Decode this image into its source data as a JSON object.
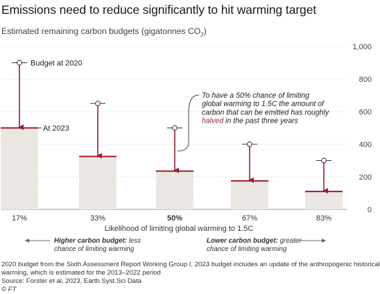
{
  "header": {
    "title": "Emissions need to reduce significantly to hit warming target",
    "subtitle_main": "Estimated remaining carbon budgets (gigatonnes CO",
    "subtitle_sub": "2",
    "subtitle_end": ")"
  },
  "chart_data": {
    "type": "bar",
    "title": "Emissions need to reduce significantly to hit warming target",
    "subtitle": "Estimated remaining carbon budgets (gigatonnes CO2)",
    "xlabel": "Likelihood of limiting global warming to 1.5C",
    "ylabel": "",
    "ylim": [
      0,
      1000
    ],
    "yticks": [
      "0",
      "200",
      "400",
      "600",
      "800",
      "1,000"
    ],
    "categories": [
      "17%",
      "33%",
      "50%",
      "67%",
      "83%"
    ],
    "highlight_category": "50%",
    "series": [
      {
        "name": "Budget at 2020",
        "values": [
          900,
          650,
          500,
          400,
          300
        ]
      },
      {
        "name": "At 2023",
        "values": [
          500,
          325,
          235,
          175,
          110
        ]
      }
    ],
    "legend_labels": {
      "budget_2020": "Budget at 2020",
      "at_2023": "At 2023"
    },
    "annotation": {
      "line1": "To have a 50% chance of limiting",
      "line2": "global warming to 1.5C the amount of",
      "line3": "carbon that can be emitted has roughly",
      "highlight": "halved",
      "line4_rest": " in the past three years"
    },
    "direction_left": {
      "bold": "Higher carbon budget:",
      "rest1": " less",
      "line2": "chance of limiting warming"
    },
    "direction_right": {
      "bold": "Lower carbon budget:",
      "rest1": " greater",
      "line2": "chance of limiting warming"
    },
    "colors": {
      "arrow": "#9b1c2e",
      "hatch": "#e8e2dc",
      "bar_top": "#9b1c2e",
      "highlight_text": "#a12a3b",
      "grid": "#cccccc"
    }
  },
  "footnote": {
    "line1": "2020 budget from the Sixth Assessment Report Working Group I. 2023 budget includes an update of the anthropogenic historical",
    "line2": "warming, which is estimated for the 2013–2022 period",
    "line3": "Source: Forster et al, 2023, Earth Syst.Sci Data",
    "line4": "© FT"
  }
}
